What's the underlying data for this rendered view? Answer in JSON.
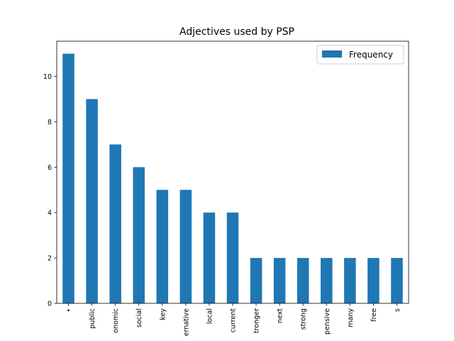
{
  "chart_data": {
    "type": "bar",
    "title": "Adjectives used by PSP",
    "xlabel": "",
    "ylabel": "",
    "categories": [
      "•",
      "public",
      "onomic",
      "social",
      "key",
      "ernative",
      "local",
      "current",
      "tronger",
      "next",
      "strong",
      "pensive",
      "many",
      "free",
      "s"
    ],
    "series": [
      {
        "name": "Frequency",
        "values": [
          11,
          9,
          7,
          6,
          5,
          5,
          4,
          4,
          2,
          2,
          2,
          2,
          2,
          2,
          2
        ],
        "color": "#1f77b4"
      }
    ],
    "yticks": [
      0,
      2,
      4,
      6,
      8,
      10
    ],
    "ylim": [
      0,
      11.55
    ],
    "grid": false,
    "legend": "top-right"
  }
}
